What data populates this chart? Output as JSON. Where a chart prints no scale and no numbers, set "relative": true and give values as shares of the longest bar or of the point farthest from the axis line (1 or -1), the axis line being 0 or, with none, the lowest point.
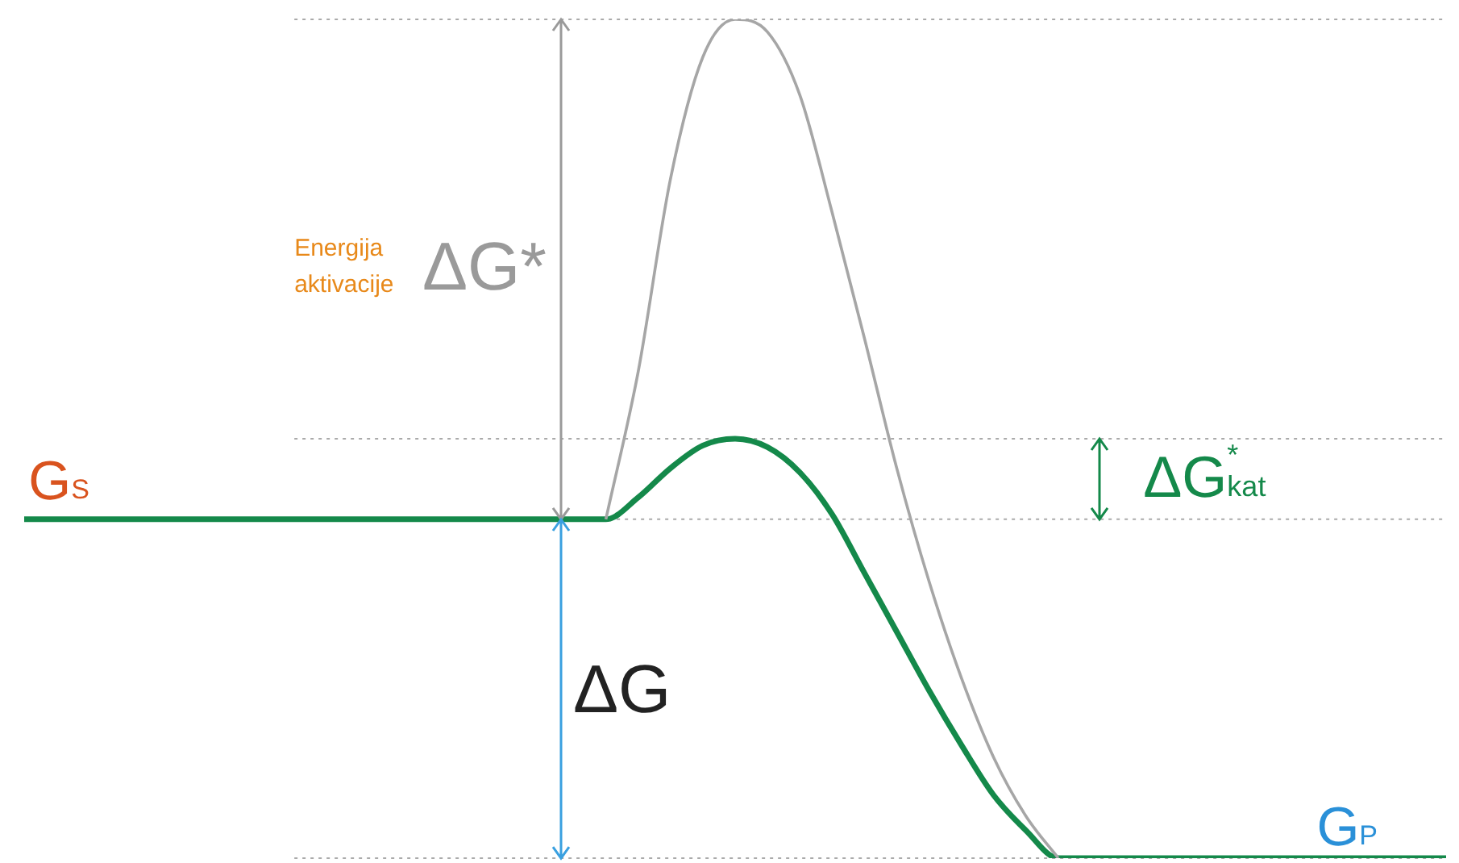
{
  "chart_data": {
    "type": "line",
    "relative": true,
    "categories": [
      null,
      null,
      null,
      null,
      null,
      null,
      null,
      null,
      null,
      null,
      null,
      null,
      null,
      null,
      null,
      null,
      null,
      null,
      null,
      null,
      null,
      null,
      null,
      null,
      null,
      null,
      null,
      null,
      null,
      null,
      null,
      null,
      null,
      null,
      null,
      null,
      null,
      null,
      null,
      null,
      null,
      null,
      null,
      null,
      null
    ],
    "series": [
      {
        "color": "#a6a6a6",
        "values": [
          null,
          null,
          null,
          null,
          null,
          null,
          null,
          null,
          null,
          null,
          null,
          null,
          null,
          null,
          null,
          null,
          null,
          null,
          0.404,
          0.58,
          0.81,
          0.955,
          1,
          0.985,
          0.91,
          0.77,
          0.62,
          0.465,
          0.33,
          0.215,
          0.12,
          0.05,
          0,
          null,
          null,
          null,
          null,
          null,
          null,
          null,
          null,
          null,
          null,
          null,
          null
        ]
      },
      {
        "color": "#14894a",
        "values": [
          0.404,
          0.404,
          0.404,
          0.404,
          0.404,
          0.404,
          0.404,
          0.404,
          0.404,
          0.404,
          0.404,
          0.404,
          0.404,
          0.404,
          0.404,
          0.404,
          0.404,
          0.404,
          0.404,
          0.43,
          0.465,
          0.492,
          0.5,
          0.49,
          0.46,
          0.41,
          0.34,
          0.27,
          0.2,
          0.135,
          0.075,
          0.033,
          0,
          0,
          0,
          0,
          0,
          0,
          0,
          0,
          0,
          0,
          0,
          0,
          0
        ]
      }
    ],
    "ref_lines": [
      {
        "axis": "y",
        "value": 1,
        "color": "#aaaaaa",
        "line_style": "dotted"
      },
      {
        "axis": "y",
        "value": 0.5,
        "color": "#aaaaaa",
        "line_style": "dotted"
      },
      {
        "axis": "y",
        "value": 0.404,
        "color": "#aaaaaa",
        "line_style": "dotted"
      },
      {
        "axis": "y",
        "value": 0,
        "color": "#aaaaaa",
        "line_style": "dotted"
      }
    ],
    "annotations": [
      "Energija aktivacije",
      "ΔG*",
      "ΔG$^{*}$$_{kat}$",
      "ΔG",
      "G$_{S}$",
      "G$_{P}$"
    ],
    "grid": false,
    "legend": false,
    "marker": "none",
    "line_style": "solid"
  }
}
